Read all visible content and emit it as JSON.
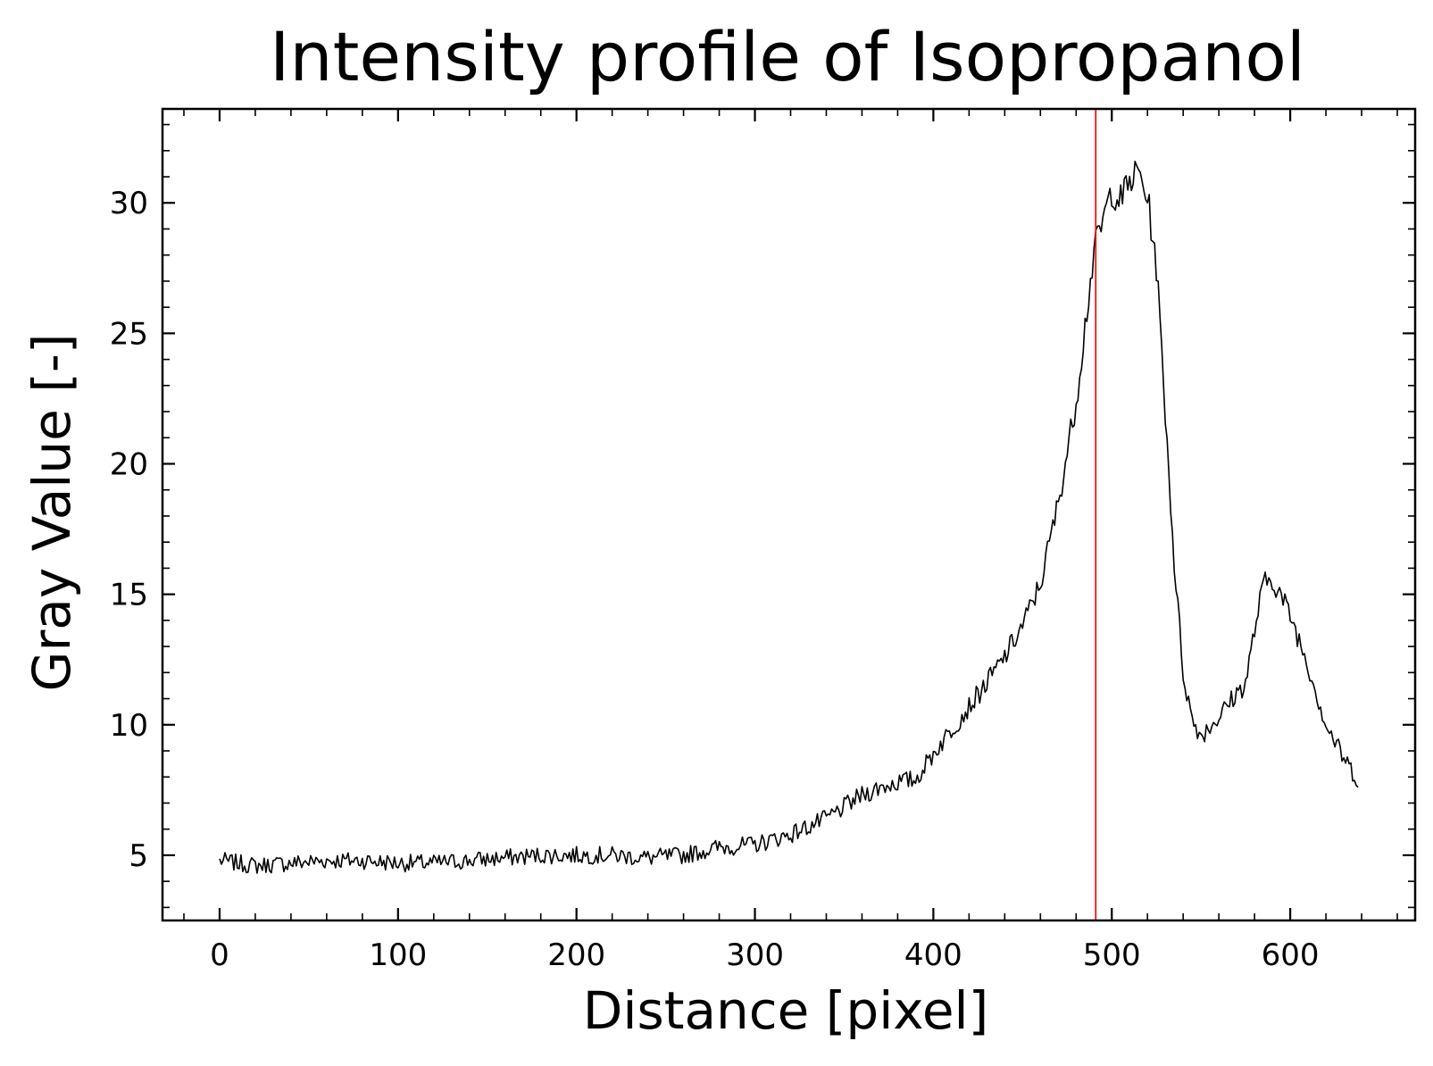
{
  "chart_data": {
    "type": "line",
    "title": "Intensity profile of Isopropanol",
    "xlabel": "Distance [pixel]",
    "ylabel": "Gray Value [-]",
    "xlim": [
      -32,
      670
    ],
    "ylim": [
      2.5,
      33.6
    ],
    "xticks": [
      0,
      100,
      200,
      300,
      400,
      500,
      600
    ],
    "yticks": [
      5,
      10,
      15,
      20,
      25,
      30
    ],
    "grid": false,
    "legend": "none",
    "series": [
      {
        "color": "#000000",
        "style": "noisy",
        "points": [
          [
            0,
            4.8
          ],
          [
            10,
            4.7
          ],
          [
            20,
            4.6
          ],
          [
            40,
            4.7
          ],
          [
            60,
            4.8
          ],
          [
            80,
            4.8
          ],
          [
            100,
            4.7
          ],
          [
            120,
            4.7
          ],
          [
            140,
            4.8
          ],
          [
            160,
            4.9
          ],
          [
            180,
            5.0
          ],
          [
            200,
            5.0
          ],
          [
            220,
            5.0
          ],
          [
            240,
            4.9
          ],
          [
            260,
            5.0
          ],
          [
            280,
            5.3
          ],
          [
            300,
            5.4
          ],
          [
            320,
            5.8
          ],
          [
            340,
            6.4
          ],
          [
            360,
            7.3
          ],
          [
            370,
            7.6
          ],
          [
            380,
            7.8
          ],
          [
            390,
            7.9
          ],
          [
            400,
            8.9
          ],
          [
            410,
            9.8
          ],
          [
            420,
            10.7
          ],
          [
            430,
            11.6
          ],
          [
            440,
            12.6
          ],
          [
            450,
            13.8
          ],
          [
            460,
            15.4
          ],
          [
            470,
            18.5
          ],
          [
            480,
            22.4
          ],
          [
            485,
            25.3
          ],
          [
            490,
            28.1
          ],
          [
            500,
            30.5
          ],
          [
            505,
            30.1
          ],
          [
            510,
            30.8
          ],
          [
            515,
            31.2
          ],
          [
            520,
            30.2
          ],
          [
            525,
            27.6
          ],
          [
            530,
            22.0
          ],
          [
            535,
            16.2
          ],
          [
            540,
            12.0
          ],
          [
            545,
            10.2
          ],
          [
            550,
            9.6
          ],
          [
            560,
            10.3
          ],
          [
            570,
            11.2
          ],
          [
            575,
            11.6
          ],
          [
            580,
            13.6
          ],
          [
            585,
            15.4
          ],
          [
            590,
            15.6
          ],
          [
            600,
            14.2
          ],
          [
            610,
            12.3
          ],
          [
            620,
            10.0
          ],
          [
            630,
            8.7
          ],
          [
            638,
            7.9
          ]
        ]
      },
      {
        "color": "#ee1111",
        "style": "vertical-line",
        "x": 491
      }
    ]
  }
}
